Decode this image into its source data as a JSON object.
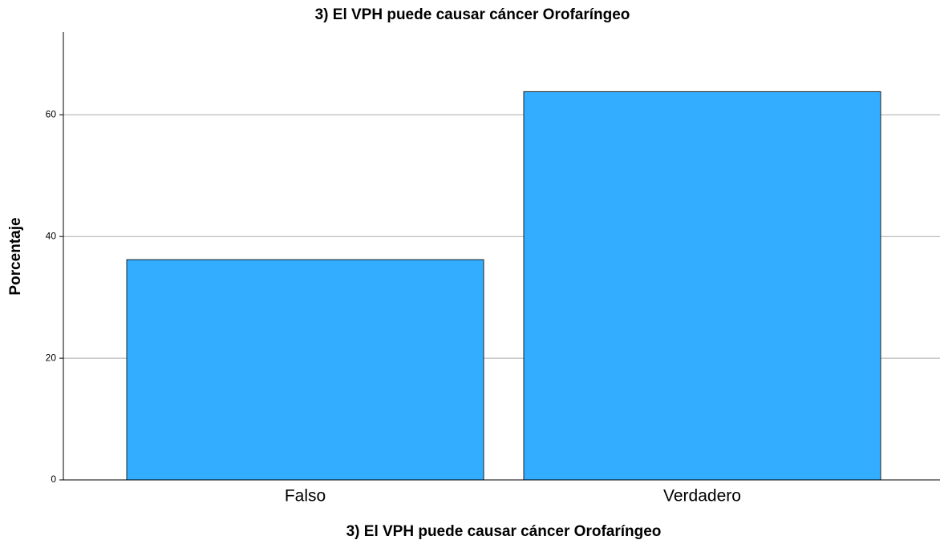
{
  "chart_data": {
    "type": "bar",
    "title": "3) El VPH puede causar cáncer Orofaríngeo",
    "xlabel": "3) El VPH puede causar cáncer Orofaríngeo",
    "ylabel": "Porcentaje",
    "categories": [
      "Falso",
      "Verdadero"
    ],
    "values": [
      36.2,
      63.8
    ],
    "color": "#33adff",
    "ylim": [
      0,
      73.6
    ],
    "yticks": [
      0,
      20,
      40,
      60
    ],
    "grid": true
  }
}
